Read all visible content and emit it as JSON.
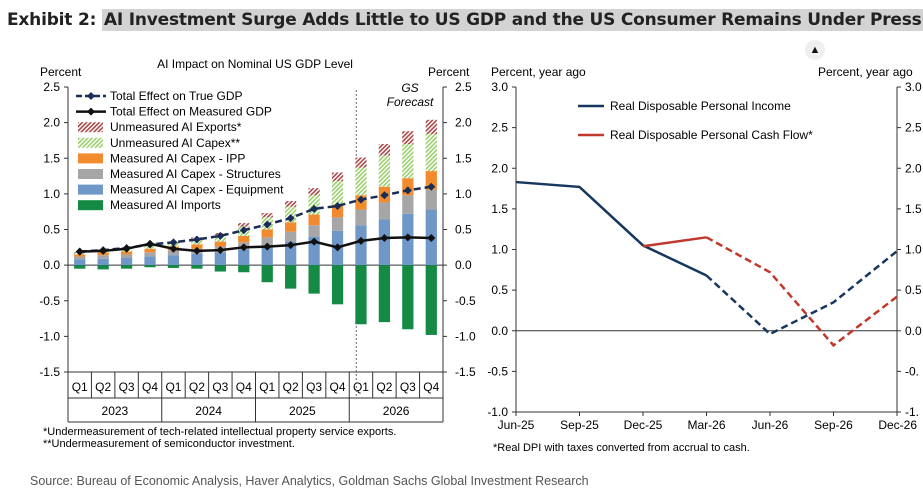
{
  "header": {
    "exhibit_label": "Exhibit 2:",
    "exhibit_title": "AI Investment Surge Adds Little to US GDP and the US Consumer Remains Under Pressure"
  },
  "share_icon": "up-arrow-icon",
  "source": "Source: Bureau of Economic Analysis, Haver Analytics, Goldman Sachs Global Investment Research",
  "chart_data": [
    {
      "type": "bar",
      "title": "AI Impact on Nominal US GDP Level",
      "left_axis_label": "Percent",
      "right_axis_label": "Percent",
      "ylim": [
        -1.5,
        2.5
      ],
      "yticks": [
        2.5,
        2.0,
        1.5,
        1.0,
        0.5,
        0.0,
        -0.5,
        -1.0,
        -1.5
      ],
      "quarters": [
        "Q1",
        "Q2",
        "Q3",
        "Q4",
        "Q1",
        "Q2",
        "Q3",
        "Q4",
        "Q1",
        "Q2",
        "Q3",
        "Q4",
        "Q1",
        "Q2",
        "Q3",
        "Q4"
      ],
      "years": [
        "2023",
        "2024",
        "2025",
        "2026"
      ],
      "forecast_label_line1": "GS",
      "forecast_label_line2": "Forecast",
      "stacked_series": [
        {
          "name": "Measured AI Capex - Equipment",
          "color": "#6f97c8",
          "values": [
            0.08,
            0.09,
            0.1,
            0.12,
            0.14,
            0.16,
            0.18,
            0.22,
            0.27,
            0.33,
            0.4,
            0.48,
            0.56,
            0.64,
            0.72,
            0.78
          ]
        },
        {
          "name": "Measured AI Capex - Structures",
          "color": "#a6a6a6",
          "values": [
            0.04,
            0.05,
            0.05,
            0.06,
            0.07,
            0.07,
            0.08,
            0.1,
            0.12,
            0.14,
            0.16,
            0.19,
            0.22,
            0.24,
            0.26,
            0.28
          ]
        },
        {
          "name": "Measured AI Capex - IPP",
          "color": "#f28a2e",
          "values": [
            0.03,
            0.04,
            0.04,
            0.05,
            0.05,
            0.06,
            0.07,
            0.09,
            0.11,
            0.13,
            0.15,
            0.18,
            0.2,
            0.22,
            0.24,
            0.26
          ]
        },
        {
          "name": "Unmeasured AI Capex**",
          "color": "#9ccf6f",
          "values": [
            0.02,
            0.03,
            0.04,
            0.05,
            0.05,
            0.07,
            0.09,
            0.13,
            0.17,
            0.22,
            0.27,
            0.33,
            0.39,
            0.44,
            0.48,
            0.52
          ]
        },
        {
          "name": "Unmeasured AI Exports*",
          "color": "#a64a4a",
          "values": [
            0.01,
            0.01,
            0.02,
            0.02,
            0.02,
            0.03,
            0.03,
            0.05,
            0.06,
            0.08,
            0.1,
            0.12,
            0.14,
            0.16,
            0.18,
            0.2
          ]
        },
        {
          "name": "Measured AI Imports",
          "color": "#148a44",
          "values": [
            -0.05,
            -0.06,
            -0.05,
            -0.03,
            -0.04,
            -0.05,
            -0.09,
            -0.1,
            -0.24,
            -0.33,
            -0.4,
            -0.55,
            -0.83,
            -0.8,
            -0.9,
            -0.98
          ]
        }
      ],
      "line_series": [
        {
          "name": "Total Effect on True GDP",
          "color": "#1a2d57",
          "style": "dashed",
          "values": [
            0.19,
            0.21,
            0.24,
            0.29,
            0.32,
            0.36,
            0.41,
            0.49,
            0.57,
            0.66,
            0.79,
            0.83,
            0.92,
            0.98,
            1.05,
            1.1
          ]
        },
        {
          "name": "Total Effect on Measured GDP",
          "color": "#111111",
          "style": "solid",
          "values": [
            0.19,
            0.2,
            0.23,
            0.3,
            0.23,
            0.2,
            0.21,
            0.25,
            0.26,
            0.28,
            0.33,
            0.25,
            0.34,
            0.38,
            0.39,
            0.38
          ]
        }
      ],
      "legend_order": [
        "Total Effect on True GDP",
        "Total Effect on Measured GDP",
        "Unmeasured AI Exports*",
        "Unmeasured AI Capex**",
        "Measured AI Capex - IPP",
        "Measured AI Capex - Structures",
        "Measured AI Capex - Equipment",
        "Measured AI Imports"
      ],
      "footnotes": [
        "*Undermeasurement of tech-related intellectual property service exports.",
        "**Undermeasurement of semiconductor investment."
      ]
    },
    {
      "type": "line",
      "left_axis_label": "Percent, year ago",
      "right_axis_label": "Percent, year ago",
      "ylim": [
        -1.0,
        3.0
      ],
      "yticks": [
        3.0,
        2.5,
        2.0,
        1.5,
        1.0,
        0.5,
        0.0,
        -0.5,
        -1.0
      ],
      "right_tick_labels": [
        "3.0",
        "2.5",
        "2.0",
        "1.5",
        "1.0",
        "0.5",
        "0.0",
        "-0.",
        "-1."
      ],
      "x": [
        "Jun-25",
        "Sep-25",
        "Dec-25",
        "Mar-26",
        "Jun-26",
        "Sep-26",
        "Dec-26"
      ],
      "series": [
        {
          "name": "Real Disposable Personal Income",
          "color": "#17375e",
          "points": [
            [
              0,
              1.83
            ],
            [
              1,
              1.77
            ],
            [
              2,
              1.05
            ],
            [
              3,
              0.68
            ],
            [
              4,
              -0.04
            ],
            [
              5,
              0.35
            ],
            [
              6,
              0.98
            ]
          ],
          "dash_from": 3
        },
        {
          "name": "Real Disposable Personal Cash Flow*",
          "color": "#c0392b",
          "points": [
            [
              2,
              1.04
            ],
            [
              3,
              1.15
            ],
            [
              4,
              0.72
            ],
            [
              5,
              -0.18
            ],
            [
              6,
              0.42
            ]
          ],
          "dash_from": 3
        }
      ],
      "footnote": "*Real DPI with taxes converted from accrual to cash."
    }
  ]
}
